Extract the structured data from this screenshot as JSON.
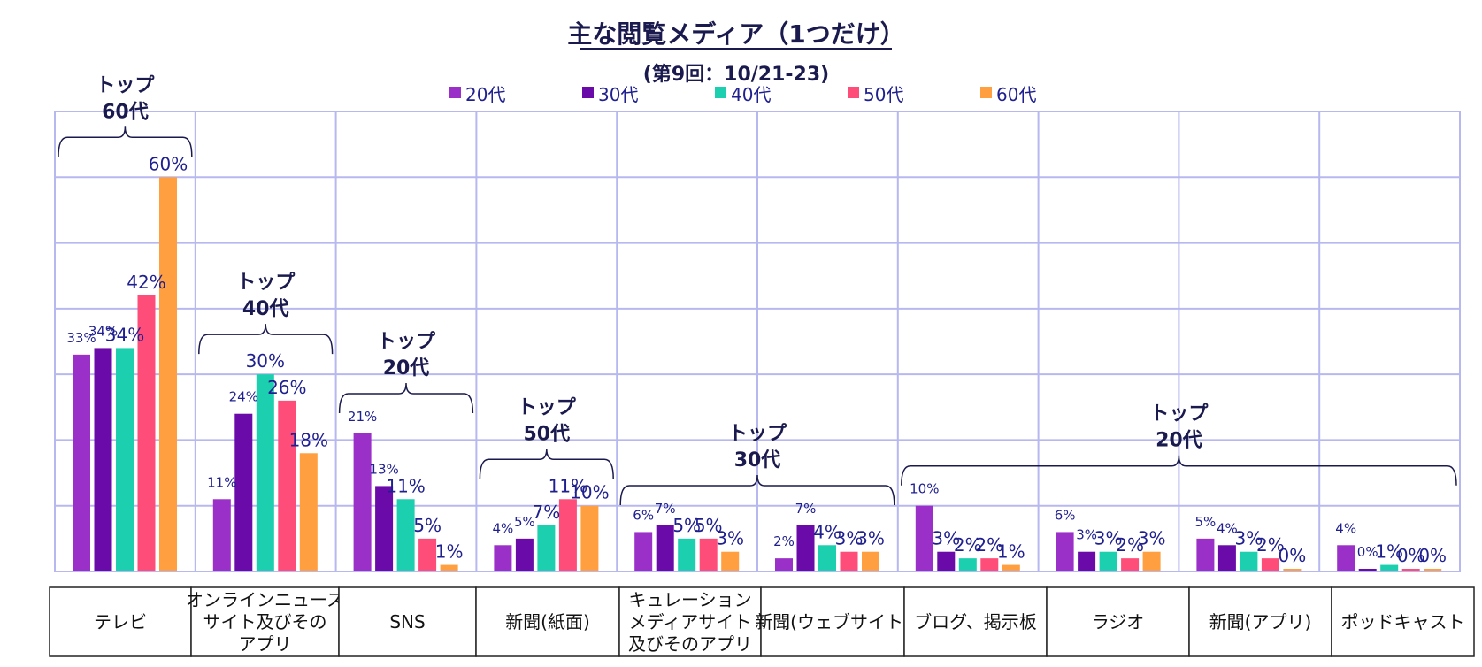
{
  "chart_data": {
    "type": "bar",
    "title": "主な閲覧メディア（1つだけ）",
    "subtitle": "(第9回：10/21-23)",
    "categories": [
      [
        "テレビ"
      ],
      [
        "オンラインニュース",
        "サイト及びその",
        "アプリ"
      ],
      [
        "SNS"
      ],
      [
        "新聞(紙面)"
      ],
      [
        "キュレーション",
        "メディアサイト",
        "及びそのアプリ"
      ],
      [
        "新聞(ウェブサイト)"
      ],
      [
        "ブログ、掲示板"
      ],
      [
        "ラジオ"
      ],
      [
        "新聞(アプリ)"
      ],
      [
        "ポッドキャスト"
      ]
    ],
    "series": [
      {
        "name": "20代",
        "color": "#9b30c8",
        "values": [
          33,
          11,
          21,
          4,
          6,
          2,
          10,
          6,
          5,
          4
        ]
      },
      {
        "name": "30代",
        "color": "#6a0aa8",
        "values": [
          34,
          24,
          13,
          5,
          7,
          7,
          3,
          3,
          4,
          0
        ]
      },
      {
        "name": "40代",
        "color": "#1ccfae",
        "values": [
          34,
          30,
          11,
          7,
          5,
          4,
          2,
          3,
          3,
          1
        ]
      },
      {
        "name": "50代",
        "color": "#ff4d7a",
        "values": [
          42,
          26,
          5,
          11,
          5,
          3,
          2,
          2,
          2,
          0
        ]
      },
      {
        "name": "60代",
        "color": "#ff9f40",
        "values": [
          60,
          18,
          1,
          10,
          3,
          3,
          1,
          3,
          0,
          0
        ]
      }
    ],
    "ylim": [
      0,
      70
    ],
    "gridlines_y": [
      10,
      20,
      30,
      40,
      50,
      60,
      70
    ],
    "grid": true,
    "legend_position": "top",
    "data_label_style": {
      "small": [
        [
          1,
          1,
          0,
          0,
          0
        ],
        [
          1,
          1,
          0,
          0,
          0
        ],
        [
          1,
          1,
          0,
          0,
          0
        ],
        [
          1,
          1,
          0,
          0,
          0
        ],
        [
          1,
          1,
          0,
          0,
          0
        ],
        [
          1,
          1,
          0,
          0,
          0
        ],
        [
          1,
          0,
          0,
          0,
          0
        ],
        [
          1,
          1,
          0,
          0,
          0
        ],
        [
          1,
          1,
          0,
          0,
          0
        ],
        [
          1,
          1,
          0,
          0,
          0
        ]
      ]
    },
    "annotations": [
      {
        "label": [
          "トップ",
          "60代"
        ],
        "span": [
          0,
          0
        ]
      },
      {
        "label": [
          "トップ",
          "40代"
        ],
        "span": [
          1,
          1
        ]
      },
      {
        "label": [
          "トップ",
          "20代"
        ],
        "span": [
          2,
          2
        ]
      },
      {
        "label": [
          "トップ",
          "50代"
        ],
        "span": [
          3,
          3
        ]
      },
      {
        "label": [
          "トップ",
          "30代"
        ],
        "span": [
          4,
          5
        ]
      },
      {
        "label": [
          "トップ",
          "20代"
        ],
        "span": [
          6,
          9
        ]
      }
    ]
  }
}
